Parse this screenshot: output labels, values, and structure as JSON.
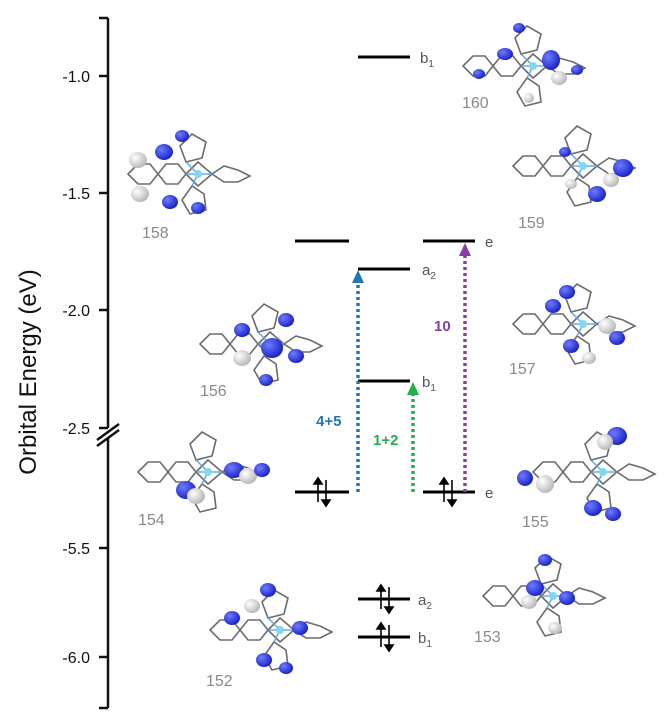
{
  "axis": {
    "ylabel": "Orbital Energy (eV)",
    "ticks_upper": [
      "-1.0",
      "-1.5",
      "-2.0",
      "-2.5"
    ],
    "ticks_lower": [
      "-5.5",
      "-6.0"
    ]
  },
  "levels": [
    {
      "id": "b1-upper",
      "label": "b",
      "sub": "1",
      "energy": -0.92,
      "column": "middle"
    },
    {
      "id": "e-left-upper",
      "label": "",
      "sub": "",
      "energy": -1.7,
      "column": "left"
    },
    {
      "id": "e-right-upper",
      "label": "e",
      "sub": "",
      "energy": -1.7,
      "column": "right"
    },
    {
      "id": "a2-upper",
      "label": "a",
      "sub": "2",
      "energy": -1.83,
      "column": "middle"
    },
    {
      "id": "b1-mid",
      "label": "b",
      "sub": "1",
      "energy": -2.3,
      "column": "middle"
    },
    {
      "id": "e-left-occ",
      "label": "",
      "sub": "",
      "energy": null,
      "column": "left",
      "occupied": true
    },
    {
      "id": "e-right-occ",
      "label": "e",
      "sub": "",
      "energy": null,
      "column": "right",
      "occupied": true
    },
    {
      "id": "a2-occ",
      "label": "a",
      "sub": "2",
      "energy": -5.73,
      "column": "middle",
      "occupied": true
    },
    {
      "id": "b1-occ",
      "label": "b",
      "sub": "1",
      "energy": -5.91,
      "column": "middle",
      "occupied": true
    }
  ],
  "transitions": [
    {
      "label": "4+5",
      "color": "#1f77b4"
    },
    {
      "label": "1+2",
      "color": "#21b04b"
    },
    {
      "label": "10",
      "color": "#8a3ea3"
    }
  ],
  "orbitals": [
    {
      "number": "160"
    },
    {
      "number": "159"
    },
    {
      "number": "158"
    },
    {
      "number": "157"
    },
    {
      "number": "156"
    },
    {
      "number": "155"
    },
    {
      "number": "154"
    },
    {
      "number": "153"
    },
    {
      "number": "152"
    }
  ],
  "colors": {
    "positive_lobe": "#1f2ad6",
    "negative_lobe": "#c8c8c8",
    "frame": "#6b6b6b",
    "metal": "#7fd8f0"
  }
}
